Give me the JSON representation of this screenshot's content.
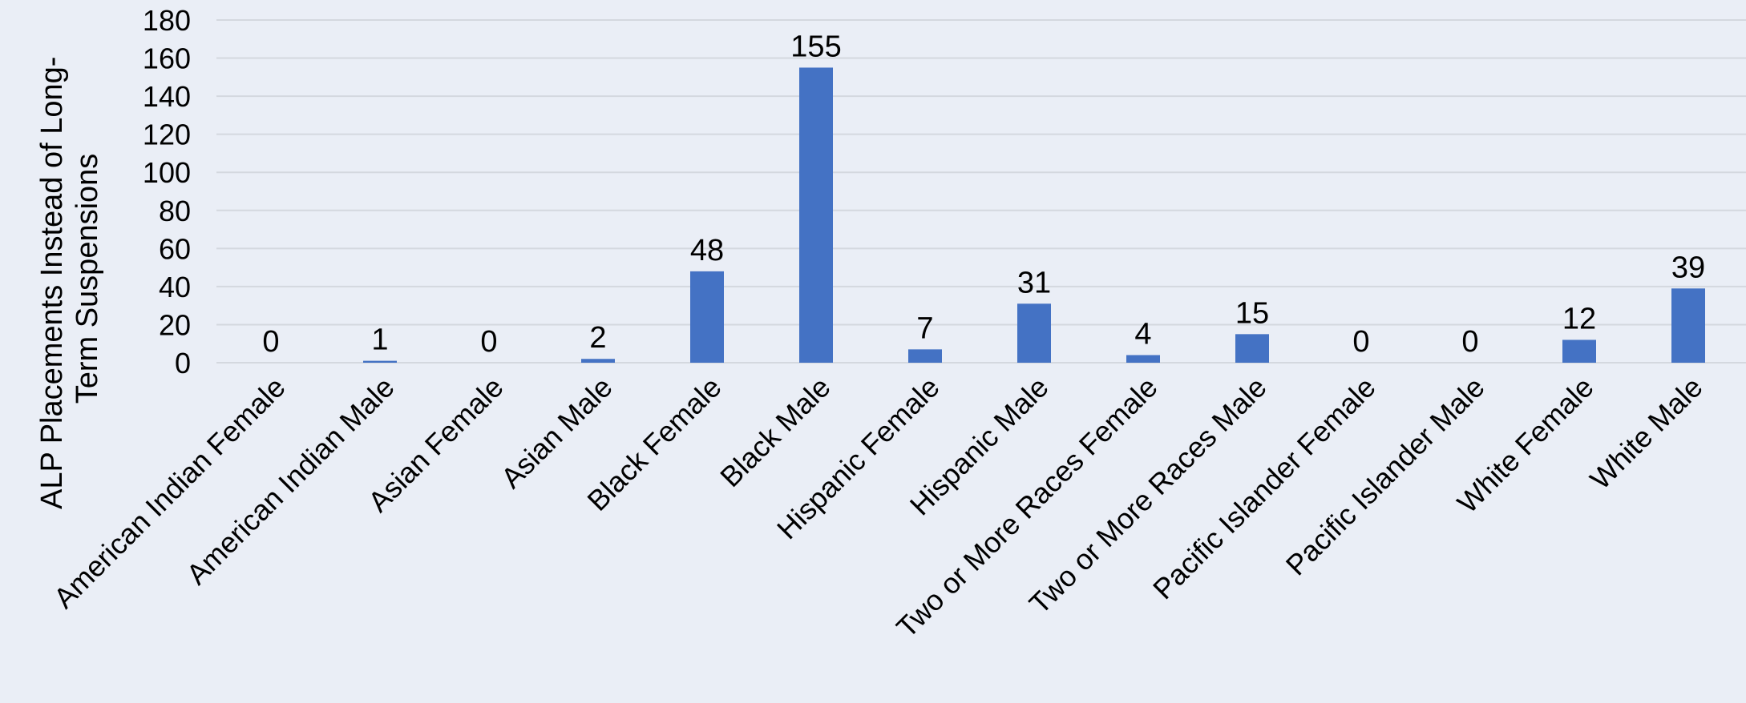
{
  "chart_data": {
    "type": "bar",
    "categories": [
      "American Indian Female",
      "American Indian Male",
      "Asian Female",
      "Asian Male",
      "Black Female",
      "Black Male",
      "Hispanic Female",
      "Hispanic Male",
      "Two or More Races Female",
      "Two or More Races Male",
      "Pacific Islander Female",
      "Pacific Islander Male",
      "White Female",
      "White Male"
    ],
    "values": [
      0,
      1,
      0,
      2,
      48,
      155,
      7,
      31,
      4,
      15,
      0,
      0,
      12,
      39
    ],
    "data_labels": [
      "0",
      "1",
      "0",
      "2",
      "48",
      "155",
      "7",
      "31",
      "4",
      "15",
      "0",
      "0",
      "12",
      "39"
    ],
    "ylabel_lines": [
      "ALP Placements Instead of Long-",
      "Term Suspensions"
    ],
    "xlabel": "",
    "ylim": [
      0,
      180
    ],
    "yticks": [
      0,
      20,
      40,
      60,
      80,
      100,
      120,
      140,
      160,
      180
    ],
    "grid": true,
    "legend": "none",
    "bar_color": "#4472c4",
    "background_color": "#eaeef6",
    "gridline_color": "#d4d8df"
  }
}
